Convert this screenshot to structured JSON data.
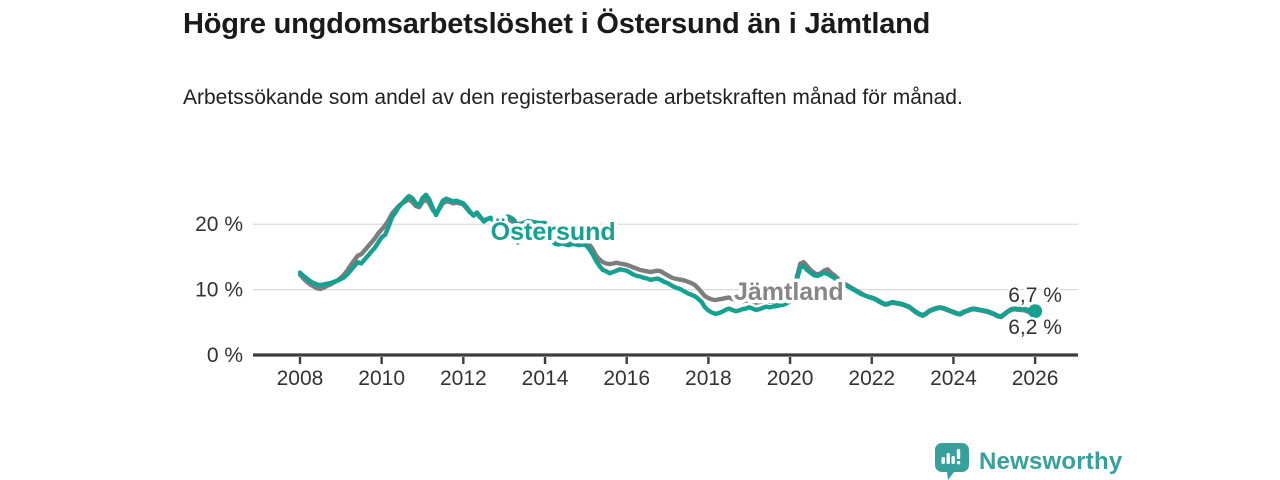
{
  "header": {
    "title": "Högre ungdomsarbetslöshet i Östersund än i Jämtland",
    "subtitle": "Arbetssökande som andel av den registerbaserade arbetskraften månad för månad."
  },
  "footer": {
    "brand": "Newsworthy",
    "brand_color": "#35a09c"
  },
  "chart_data": {
    "type": "line",
    "title": "Högre ungdomsarbetslöshet i Östersund än i Jämtland",
    "subtitle": "Arbetssökande som andel av den registerbaserade arbetskraften månad för månad.",
    "unit": "%",
    "x_start_year": 2008,
    "points_per_year": 12,
    "xlim": [
      2006.85,
      2027.05
    ],
    "ylim": [
      0,
      26
    ],
    "grid_on": true,
    "grid_values": [
      10,
      20
    ],
    "grid_color": "#dbdbdb",
    "axis_color": "#3d3d3d",
    "tick_label_color": "#333333",
    "y_ticks": [
      {
        "value": 0,
        "label": "0 %"
      },
      {
        "value": 10,
        "label": "10 %"
      },
      {
        "value": 20,
        "label": "20 %"
      }
    ],
    "x_ticks": [
      {
        "value": 2008,
        "label": "2008"
      },
      {
        "value": 2010,
        "label": "2010"
      },
      {
        "value": 2012,
        "label": "2012"
      },
      {
        "value": 2014,
        "label": "2014"
      },
      {
        "value": 2016,
        "label": "2016"
      },
      {
        "value": 2018,
        "label": "2018"
      },
      {
        "value": 2020,
        "label": "2020"
      },
      {
        "value": 2022,
        "label": "2022"
      },
      {
        "value": 2024,
        "label": "2024"
      },
      {
        "value": 2026,
        "label": "2026"
      }
    ],
    "series": [
      {
        "id": "jamtland",
        "name": "Jämtland",
        "color": "#7d7d7d",
        "label_color": "#868686",
        "label_pos": {
          "year": 2019.97,
          "value": 9.8
        },
        "end_dot": false,
        "values": [
          12.3,
          11.7,
          11.2,
          10.8,
          10.5,
          10.2,
          10.1,
          10.3,
          10.6,
          10.8,
          11.1,
          11.4,
          11.8,
          12.3,
          13.0,
          13.8,
          14.5,
          15.2,
          15.4,
          16.0,
          16.6,
          17.2,
          17.8,
          18.6,
          19.2,
          19.8,
          20.6,
          21.6,
          22.2,
          22.8,
          23.2,
          23.5,
          23.8,
          23.4,
          22.8,
          22.6,
          23.4,
          23.8,
          23.2,
          22.2,
          21.6,
          22.4,
          23.2,
          23.5,
          23.4,
          23.2,
          23.3,
          23.2,
          23.0,
          22.4,
          21.8,
          21.4,
          21.6,
          21.0,
          20.6,
          20.8,
          20.9,
          20.5,
          20.3,
          20.4,
          20.5,
          20.7,
          20.5,
          20.3,
          20.0,
          20.1,
          20.2,
          20.3,
          20.2,
          20.1,
          20.0,
          20.0,
          20.0,
          19.4,
          18.4,
          17.8,
          17.5,
          17.4,
          17.3,
          17.4,
          17.3,
          17.4,
          17.3,
          17.4,
          17.3,
          16.9,
          16.2,
          15.2,
          14.6,
          14.2,
          14.0,
          13.9,
          14.0,
          14.1,
          14.0,
          13.9,
          13.8,
          13.6,
          13.4,
          13.2,
          13.0,
          12.9,
          12.8,
          12.7,
          12.8,
          12.9,
          12.8,
          12.5,
          12.2,
          11.9,
          11.7,
          11.6,
          11.5,
          11.4,
          11.2,
          11.0,
          10.7,
          10.2,
          9.6,
          9.0,
          8.7,
          8.5,
          8.4,
          8.5,
          8.6,
          8.7,
          8.8,
          8.6,
          8.4,
          8.3,
          8.2,
          8.3,
          8.4,
          8.2,
          8.0,
          8.1,
          8.2,
          8.3,
          8.2,
          8.1,
          8.0,
          8.1,
          8.2,
          8.4,
          8.6,
          9.4,
          12.0,
          14.0,
          14.2,
          13.6,
          13.0,
          12.6,
          12.3,
          12.5,
          12.9,
          13.1,
          12.6,
          12.2,
          11.7,
          11.2,
          10.9,
          10.6,
          10.3,
          10.0,
          9.7,
          9.4,
          9.1,
          8.9,
          8.7,
          8.5,
          8.2,
          7.9,
          7.7,
          7.8,
          8.0,
          7.9,
          7.8,
          7.7,
          7.5,
          7.3,
          6.9,
          6.5,
          6.2,
          6.0,
          6.3,
          6.7,
          6.9,
          7.1,
          7.2,
          7.1,
          6.9,
          6.7,
          6.5,
          6.3,
          6.2,
          6.5,
          6.7,
          6.9,
          7.0,
          6.9,
          6.8,
          6.7,
          6.6,
          6.4,
          6.2,
          5.9,
          5.8,
          6.2,
          6.6,
          6.9,
          7.0,
          6.9,
          6.9,
          6.8,
          6.6,
          6.4,
          6.2
        ]
      },
      {
        "id": "ostersund",
        "name": "Östersund",
        "color": "#14a191",
        "label_color": "#14a191",
        "label_pos": {
          "year": 2014.2,
          "value": 19.0
        },
        "end_dot": true,
        "values": [
          12.6,
          12.1,
          11.7,
          11.3,
          11.0,
          10.8,
          10.7,
          10.8,
          10.9,
          11.0,
          11.2,
          11.4,
          11.6,
          11.9,
          12.4,
          13.0,
          13.6,
          14.2,
          14.0,
          14.6,
          15.2,
          15.8,
          16.4,
          17.2,
          18.0,
          18.4,
          19.6,
          21.0,
          21.8,
          22.6,
          23.2,
          23.8,
          24.3,
          24.0,
          23.2,
          22.9,
          24.0,
          24.5,
          23.8,
          22.5,
          21.4,
          22.6,
          23.6,
          23.9,
          23.7,
          23.5,
          23.6,
          23.4,
          23.2,
          22.6,
          21.9,
          21.3,
          21.8,
          21.1,
          20.4,
          20.8,
          21.0,
          20.4,
          20.2,
          20.5,
          20.8,
          21.2,
          21.0,
          20.6,
          17.2,
          20.0,
          20.3,
          20.5,
          20.4,
          20.3,
          20.2,
          20.2,
          20.2,
          19.0,
          17.4,
          17.0,
          16.9,
          17.1,
          16.9,
          16.8,
          17.0,
          16.9,
          16.8,
          16.9,
          16.8,
          16.2,
          15.4,
          14.4,
          13.6,
          13.0,
          12.8,
          12.5,
          12.7,
          12.9,
          13.1,
          13.0,
          12.9,
          12.6,
          12.3,
          12.1,
          12.0,
          11.8,
          11.7,
          11.5,
          11.6,
          11.7,
          11.5,
          11.2,
          11.0,
          10.7,
          10.4,
          10.2,
          10.0,
          9.7,
          9.4,
          9.2,
          9.0,
          8.6,
          8.1,
          7.3,
          6.8,
          6.5,
          6.3,
          6.4,
          6.6,
          6.9,
          7.1,
          6.9,
          6.7,
          6.8,
          7.0,
          7.1,
          7.3,
          7.1,
          6.9,
          7.0,
          7.2,
          7.4,
          7.3,
          7.4,
          7.5,
          7.6,
          7.7,
          7.9,
          8.2,
          9.0,
          11.5,
          13.4,
          13.6,
          13.0,
          12.6,
          12.2,
          12.1,
          12.3,
          12.6,
          12.4,
          12.1,
          11.8,
          11.4,
          11.0,
          10.8,
          10.5,
          10.2,
          9.9,
          9.6,
          9.3,
          9.1,
          8.9,
          8.8,
          8.6,
          8.3,
          8.0,
          7.8,
          7.9,
          8.1,
          8.0,
          7.9,
          7.8,
          7.6,
          7.4,
          7.0,
          6.6,
          6.3,
          6.1,
          6.4,
          6.8,
          7.0,
          7.2,
          7.3,
          7.2,
          7.0,
          6.8,
          6.6,
          6.4,
          6.3,
          6.6,
          6.8,
          7.0,
          7.1,
          7.0,
          6.9,
          6.8,
          6.7,
          6.5,
          6.3,
          6.0,
          5.9,
          6.3,
          6.7,
          7.0,
          7.1,
          7.0,
          7.1,
          7.0,
          6.9,
          6.8,
          6.7
        ]
      }
    ],
    "end_labels": [
      {
        "text": "6,7 %",
        "year": 2026.0,
        "value": 9.2
      },
      {
        "text": "6,2 %",
        "year": 2026.0,
        "value": 4.3
      }
    ],
    "legend_position": "inline-labels"
  }
}
